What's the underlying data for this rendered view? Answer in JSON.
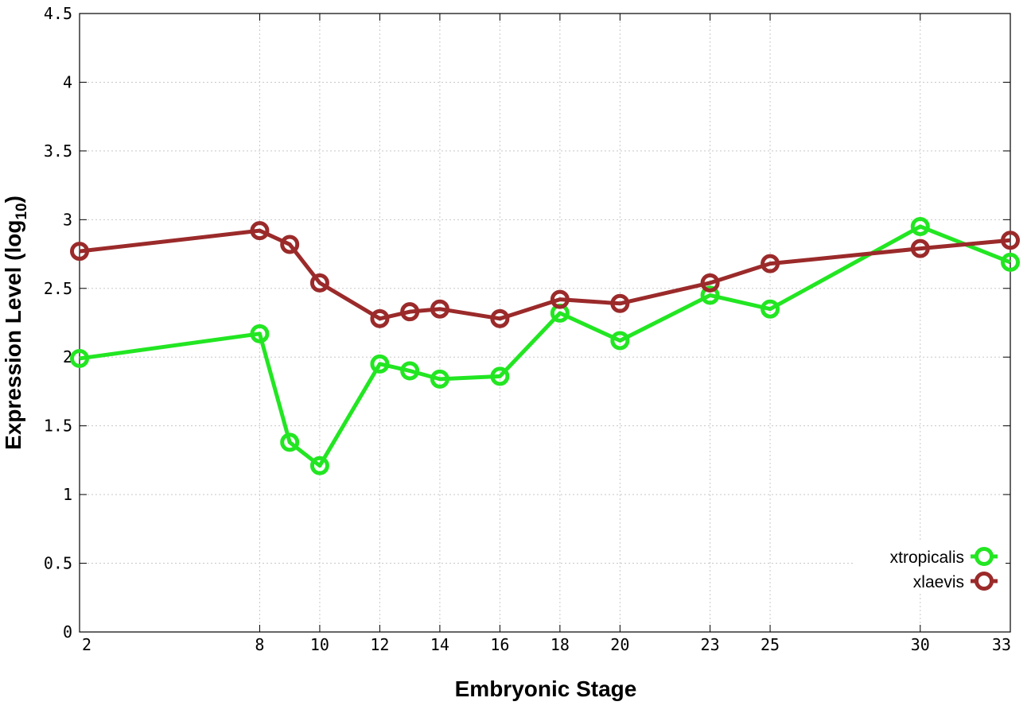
{
  "chart_data": {
    "type": "line",
    "x": [
      2,
      8,
      9,
      10,
      12,
      13,
      14,
      16,
      18,
      20,
      23,
      25,
      30,
      33
    ],
    "xticks": [
      2,
      8,
      10,
      12,
      14,
      16,
      18,
      20,
      23,
      25,
      30,
      33
    ],
    "xlim": [
      2,
      33
    ],
    "ylim": [
      0,
      4.5
    ],
    "yticks": [
      "0",
      "0.5",
      "1",
      "1.5",
      "2",
      "2.5",
      "3",
      "3.5",
      "4",
      "4.5"
    ],
    "xlabel": "Embryonic Stage",
    "ylabel_main": "Expression Level (log",
    "ylabel_sub": "10",
    "ylabel_close": ")",
    "grid": true,
    "legend_position": "bottom-right",
    "series": [
      {
        "name": "xtropicalis",
        "color": "#22e622",
        "values": [
          1.99,
          2.17,
          1.38,
          1.21,
          1.95,
          1.9,
          1.84,
          1.86,
          2.32,
          2.12,
          2.45,
          2.35,
          2.95,
          2.69
        ]
      },
      {
        "name": "xlaevis",
        "color": "#9b2a2a",
        "values": [
          2.77,
          2.92,
          2.82,
          2.54,
          2.28,
          2.33,
          2.35,
          2.28,
          2.42,
          2.39,
          2.54,
          2.68,
          2.79,
          2.85
        ]
      }
    ]
  }
}
